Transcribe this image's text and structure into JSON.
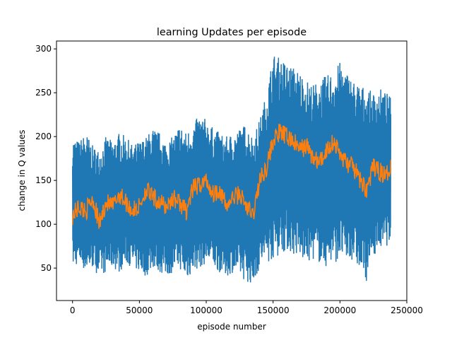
{
  "chart_data": {
    "type": "line",
    "title": "learning Updates per episode",
    "xlabel": "episode number",
    "ylabel": "change in Q values",
    "xlim": [
      -12000,
      250000
    ],
    "ylim": [
      13,
      309
    ],
    "x_ticks": [
      0,
      50000,
      100000,
      150000,
      200000,
      250000
    ],
    "y_ticks": [
      50,
      100,
      150,
      200,
      250,
      300
    ],
    "grid": false,
    "legend": "none",
    "colors": {
      "raw": "#1f77b4",
      "smoothed": "#ff7f0e"
    },
    "series": [
      {
        "role": "raw",
        "x": [
          0,
          5000,
          10000,
          15000,
          20000,
          25000,
          30000,
          35000,
          40000,
          45000,
          50000,
          55000,
          60000,
          65000,
          70000,
          75000,
          80000,
          85000,
          90000,
          95000,
          100000,
          105000,
          110000,
          115000,
          120000,
          125000,
          130000,
          135000,
          140000,
          145000,
          150000,
          155000,
          160000,
          165000,
          170000,
          175000,
          180000,
          185000,
          190000,
          195000,
          200000,
          205000,
          210000,
          215000,
          220000,
          225000,
          230000,
          235000,
          238000
        ],
        "upper": [
          200,
          195,
          205,
          190,
          185,
          200,
          195,
          205,
          200,
          190,
          195,
          200,
          210,
          205,
          195,
          200,
          215,
          205,
          215,
          225,
          220,
          210,
          205,
          200,
          205,
          210,
          215,
          200,
          220,
          250,
          295,
          290,
          285,
          280,
          275,
          265,
          260,
          265,
          270,
          275,
          285,
          275,
          265,
          260,
          255,
          250,
          255,
          250,
          245
        ],
        "lower": [
          50,
          55,
          45,
          50,
          40,
          45,
          50,
          45,
          55,
          50,
          45,
          40,
          50,
          45,
          40,
          45,
          50,
          35,
          45,
          50,
          55,
          50,
          45,
          40,
          45,
          40,
          35,
          30,
          50,
          55,
          60,
          65,
          70,
          65,
          60,
          55,
          60,
          55,
          50,
          55,
          60,
          55,
          60,
          45,
          35,
          65,
          70,
          75,
          80
        ]
      },
      {
        "role": "smoothed",
        "x": [
          0,
          5000,
          10000,
          15000,
          20000,
          25000,
          30000,
          35000,
          40000,
          45000,
          50000,
          55000,
          60000,
          65000,
          70000,
          75000,
          80000,
          85000,
          90000,
          95000,
          100000,
          105000,
          110000,
          115000,
          120000,
          125000,
          130000,
          135000,
          140000,
          145000,
          150000,
          155000,
          160000,
          165000,
          170000,
          175000,
          180000,
          185000,
          190000,
          195000,
          200000,
          205000,
          210000,
          215000,
          220000,
          225000,
          230000,
          235000,
          238000
        ],
        "y": [
          110,
          120,
          115,
          130,
          100,
          125,
          120,
          135,
          125,
          115,
          120,
          140,
          130,
          125,
          120,
          130,
          125,
          115,
          140,
          145,
          150,
          135,
          140,
          120,
          130,
          135,
          120,
          110,
          150,
          165,
          195,
          205,
          200,
          195,
          185,
          190,
          175,
          170,
          185,
          195,
          180,
          170,
          165,
          150,
          140,
          165,
          160,
          155,
          170
        ]
      }
    ]
  }
}
